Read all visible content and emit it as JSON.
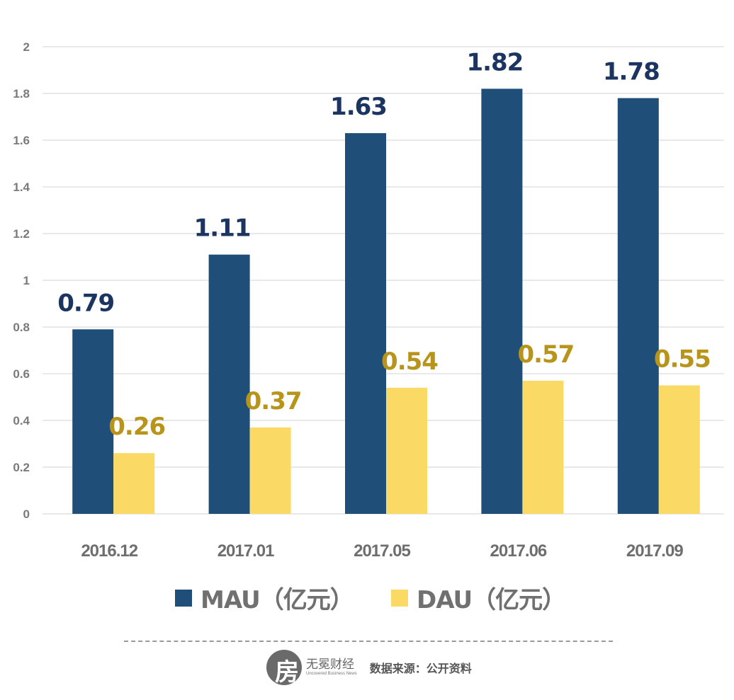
{
  "chart_data": {
    "type": "bar",
    "title": "",
    "xlabel": "",
    "ylabel": "",
    "categories": [
      "2016.12",
      "2017.01",
      "2017.05",
      "2017.06",
      "2017.09"
    ],
    "series": [
      {
        "name": "MAU（亿元）",
        "values": [
          0.79,
          1.11,
          1.63,
          1.82,
          1.78
        ],
        "color": "#1f4e79",
        "label_color": "#1c3460"
      },
      {
        "name": "DAU（亿元）",
        "values": [
          0.26,
          0.37,
          0.54,
          0.57,
          0.55
        ],
        "color": "#fad965",
        "label_color": "#b8951a"
      }
    ],
    "data_labels": {
      "MAU": [
        "0.79",
        "1.11",
        "1.63",
        "1.82",
        "1.78"
      ],
      "DAU": [
        "0.26",
        "0.37",
        "0.54",
        "0.57",
        "0.55"
      ]
    },
    "ylim": [
      0,
      2
    ],
    "yticks": [
      0,
      0.2,
      0.4,
      0.6,
      0.8,
      1,
      1.2,
      1.4,
      1.6,
      1.8,
      2
    ],
    "ytick_labels": [
      "0",
      "0.2",
      "0.4",
      "0.6",
      "0.8",
      "1",
      "1.2",
      "1.4",
      "1.6",
      "1.8",
      "2"
    ],
    "grid": true,
    "legend_position": "bottom"
  },
  "legend": {
    "items": [
      {
        "label": "MAU（亿元）",
        "color": "#1f4e79"
      },
      {
        "label": "DAU（亿元）",
        "color": "#fad965"
      }
    ]
  },
  "footer": {
    "logo_glyph": "房",
    "brand_cn": "无冕财经",
    "brand_en": "Uncovered Business News",
    "source": "数据来源：公开资料"
  }
}
